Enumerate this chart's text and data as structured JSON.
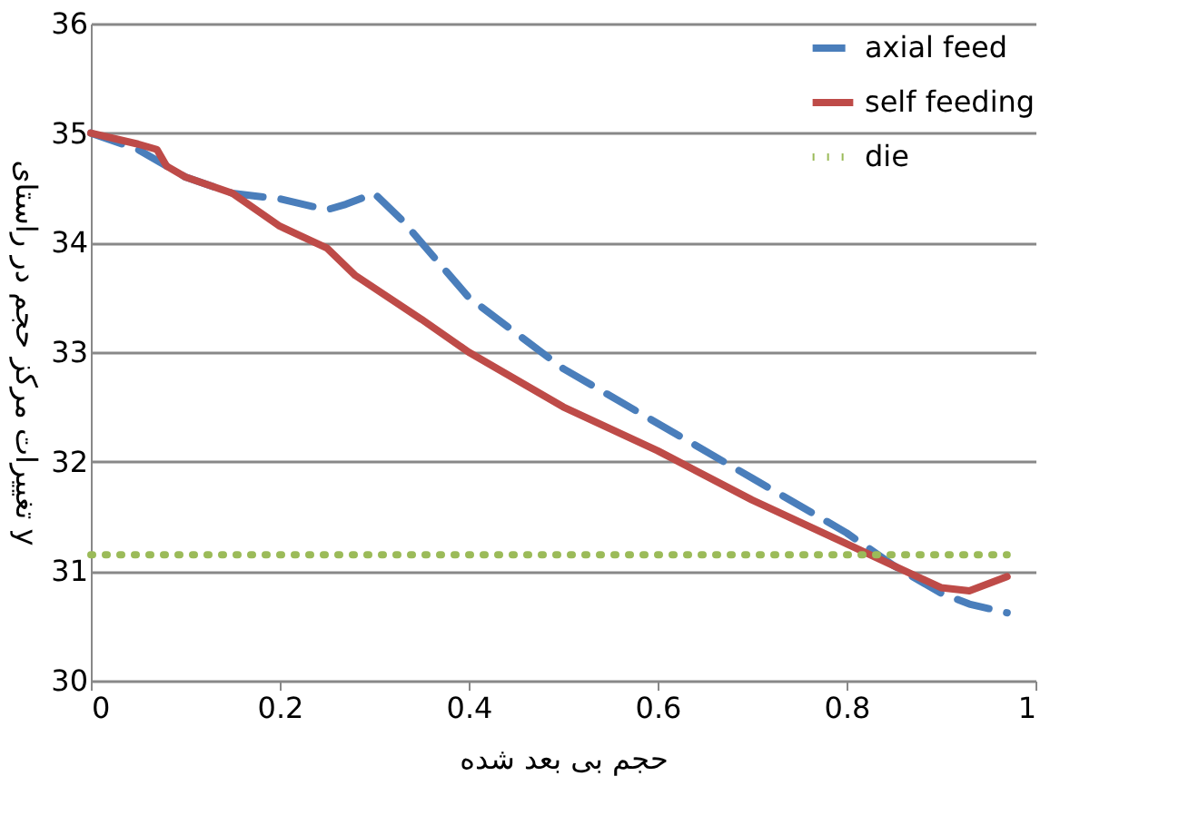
{
  "chart_data": {
    "type": "line",
    "xlabel": "حجم بی بعد شده",
    "ylabel": "تغییرات مرکز حجم در راستای y",
    "xlim": [
      0,
      1
    ],
    "xticks": [
      0,
      0.2,
      0.4,
      0.6,
      0.8,
      1
    ],
    "ylim": [
      30,
      36
    ],
    "yticks": [
      30,
      31,
      32,
      33,
      34,
      35,
      36
    ],
    "grid": "y",
    "legend": "top right",
    "series": [
      {
        "name": "axial feed",
        "color": "#4a7ebb",
        "line_style": "dashed",
        "x": [
          0,
          0.05,
          0.1,
          0.15,
          0.2,
          0.25,
          0.27,
          0.3,
          0.33,
          0.4,
          0.5,
          0.6,
          0.7,
          0.8,
          0.85,
          0.9,
          0.93,
          0.97
        ],
        "values": [
          35,
          34.85,
          34.6,
          34.45,
          34.4,
          34.3,
          34.35,
          34.45,
          34.2,
          33.5,
          32.85,
          32.35,
          31.85,
          31.35,
          31.05,
          30.8,
          30.7,
          30.62
        ]
      },
      {
        "name": "self feeding",
        "color": "#be4b48",
        "line_style": "solid",
        "x": [
          0,
          0.05,
          0.07,
          0.08,
          0.1,
          0.15,
          0.2,
          0.25,
          0.28,
          0.35,
          0.4,
          0.5,
          0.6,
          0.7,
          0.8,
          0.85,
          0.9,
          0.93,
          0.97
        ],
        "values": [
          35,
          34.9,
          34.85,
          34.7,
          34.6,
          34.45,
          34.15,
          33.95,
          33.7,
          33.3,
          33.0,
          32.5,
          32.1,
          31.65,
          31.25,
          31.05,
          30.85,
          30.82,
          30.95
        ]
      },
      {
        "name": "die",
        "color": "#9bbb59",
        "line_style": "dotted",
        "x": [
          0,
          0.97
        ],
        "values": [
          31.15,
          31.15
        ]
      }
    ]
  }
}
